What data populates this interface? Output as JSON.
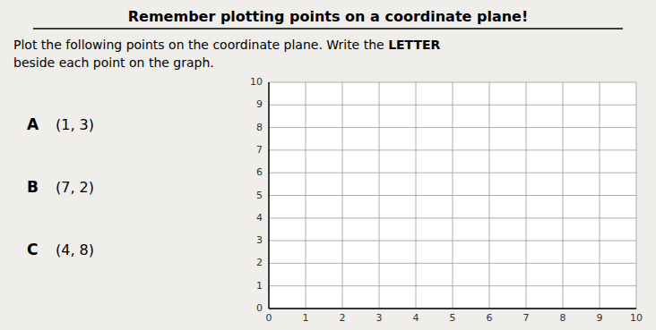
{
  "chart_data": {
    "type": "coordinate_plane",
    "title": "Remember plotting points on a coordinate plane!",
    "instruction_line1": "Plot the following points on the coordinate plane. Write the ",
    "instruction_bold": "LETTER",
    "instruction_line2": "beside each point on the graph.",
    "points": [
      {
        "label": "A",
        "coords_text": "(1, 3)"
      },
      {
        "label": "B",
        "coords_text": "(7, 2)"
      },
      {
        "label": "C",
        "coords_text": "(4, 8)"
      }
    ],
    "xlim": [
      0,
      10
    ],
    "ylim": [
      0,
      10
    ],
    "xticks": [
      0,
      1,
      2,
      3,
      4,
      5,
      6,
      7,
      8,
      9,
      10
    ],
    "yticks": [
      0,
      1,
      2,
      3,
      4,
      5,
      6,
      7,
      8,
      9,
      10
    ],
    "grid": true
  }
}
